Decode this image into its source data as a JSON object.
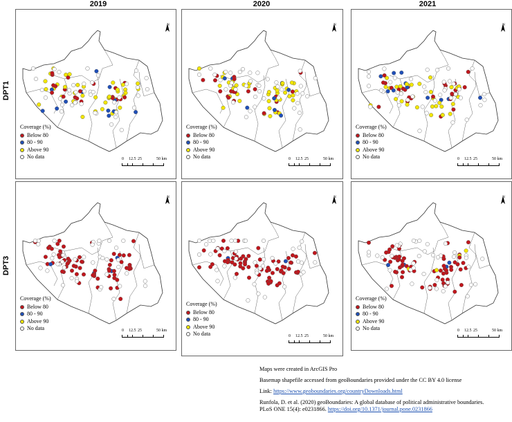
{
  "columns": [
    "2019",
    "2020",
    "2021"
  ],
  "rows": [
    "DPT1",
    "DPT3"
  ],
  "legend": {
    "title": "Coverage (%)",
    "items": [
      {
        "label": "Below 80",
        "color": "#c0161c"
      },
      {
        "label": "80 - 90",
        "color": "#1f4fb8"
      },
      {
        "label": "Above 90",
        "color": "#f2e600"
      },
      {
        "label": "No data",
        "color": "#ffffff"
      }
    ]
  },
  "scale": {
    "labels": [
      "0",
      "12.5",
      "25",
      "50"
    ],
    "unit": "km"
  },
  "north_label": "N",
  "notes": {
    "line1": "Maps were created in ArcGIS Pro",
    "line2": "Basemap shapefile accessed from geoBoundaries provided under the CC BY 4.0 license",
    "line3_prefix": "Link: ",
    "line3_link": "https://www.geoboundaries.org/countryDownloads.html",
    "line4": "Runfola, D. et al. (2020) geoBoundaries: A global database of political administrative boundaries.",
    "line5_prefix": "PLoS ONE 15(4): e0231866. ",
    "line5_link": "https://doi.org/10.1371/journal.pone.0231866"
  }
}
